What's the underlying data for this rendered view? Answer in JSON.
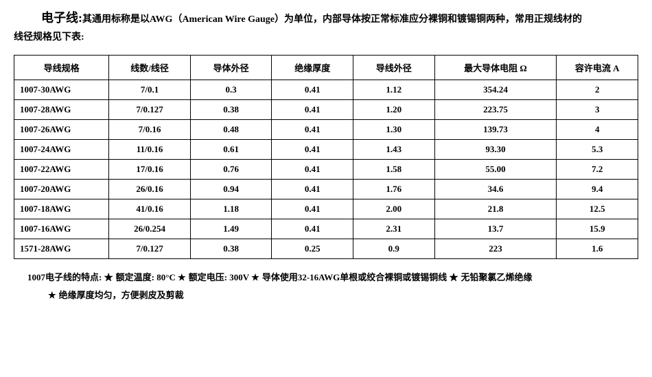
{
  "intro": {
    "title": "电子线:",
    "text_line1": "其通用标称是以AWG（American Wire Gauge）为单位，内部导体按正常标准应分裸铜和镀锡铜两种，常用正规线材的",
    "text_line2": "线径规格见下表:"
  },
  "table": {
    "columns": [
      "导线规格",
      "线数/线径",
      "导体外径",
      "绝缘厚度",
      "导线外径",
      "最大导体电阻 Ω",
      "容许电流 A"
    ],
    "rows": [
      [
        "1007-30AWG",
        "7/0.1",
        "0.3",
        "0.41",
        "1.12",
        "354.24",
        "2"
      ],
      [
        "1007-28AWG",
        "7/0.127",
        "0.38",
        "0.41",
        "1.20",
        "223.75",
        "3"
      ],
      [
        "1007-26AWG",
        "7/0.16",
        "0.48",
        "0.41",
        "1.30",
        "139.73",
        "4"
      ],
      [
        "1007-24AWG",
        "11/0.16",
        "0.61",
        "0.41",
        "1.43",
        "93.30",
        "5.3"
      ],
      [
        "1007-22AWG",
        "17/0.16",
        "0.76",
        "0.41",
        "1.58",
        "55.00",
        "7.2"
      ],
      [
        "1007-20AWG",
        "26/0.16",
        "0.94",
        "0.41",
        "1.76",
        "34.6",
        "9.4"
      ],
      [
        "1007-18AWG",
        "41/0.16",
        "1.18",
        "0.41",
        "2.00",
        "21.8",
        "12.5"
      ],
      [
        "1007-16AWG",
        "26/0.254",
        "1.49",
        "0.41",
        "2.31",
        "13.7",
        "15.9"
      ],
      [
        "1571-28AWG",
        "7/0.127",
        "0.38",
        "0.25",
        "0.9",
        "223",
        "1.6"
      ]
    ],
    "column_widths": [
      "14%",
      "12%",
      "12%",
      "12%",
      "12%",
      "18%",
      "12%"
    ]
  },
  "notes": {
    "prefix": "1007电子线的特点:",
    "items": [
      "额定温度: 80°C",
      "额定电压: 300V",
      "导体使用32-16AWG单根或绞合裸铜或镀锡铜线",
      "无铅聚氯乙烯绝缘",
      "绝缘厚度均匀，方便剥皮及剪裁"
    ],
    "star": "★"
  }
}
